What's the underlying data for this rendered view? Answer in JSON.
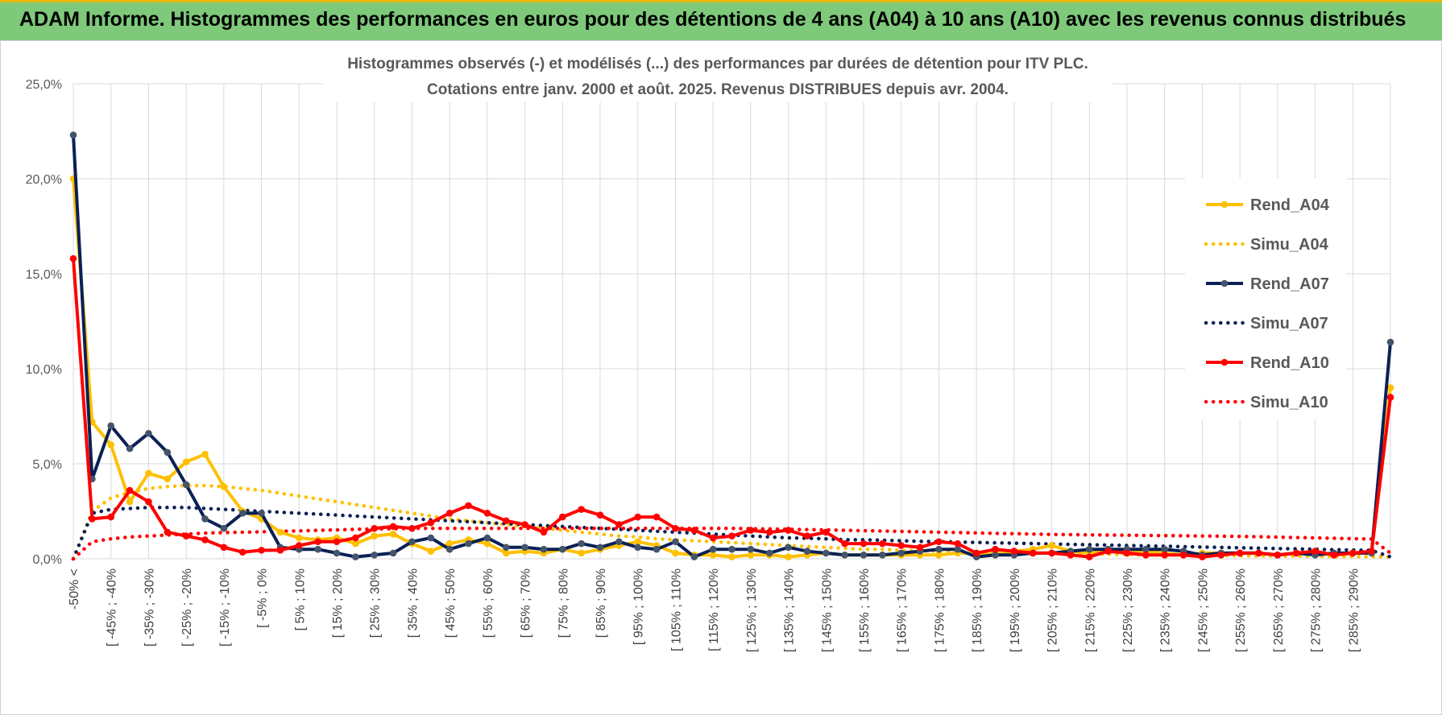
{
  "header": {
    "title": "ADAM Informe. Histogrammes des performances en euros pour des détentions de 4 ans (A04) à 10 ans (A10) avec les revenus connus distribués"
  },
  "colors": {
    "header_bg": "#7ec97a",
    "a04": "#FFC000",
    "a07": "#0B2055",
    "a10": "#FF0000",
    "grid": "#D9D9D9"
  },
  "chart_data": {
    "type": "line",
    "title": "Histogrammes observés (-) et modélisés (...) des performances par durées de détention pour ITV PLC.",
    "subtitle": "Cotations entre janv. 2000 et août. 2025. Revenus DISTRIBUES depuis avr. 2004.",
    "xlabel": "",
    "ylabel": "",
    "ylim": [
      0,
      25
    ],
    "yticks": [
      "0,0%",
      "5,0%",
      "10,0%",
      "15,0%",
      "20,0%",
      "25,0%"
    ],
    "grid": true,
    "legend_position": "right",
    "x_tick_labels": [
      "-50% <",
      "[ -45% ; -40%",
      "[ -35% ; -30%",
      "[ -25% ; -20%",
      "[ -15% ; -10%",
      "[ -5% ; 0%",
      "[ 5% ; 10%",
      "[ 15% ; 20%",
      "[ 25% ; 30%",
      "[ 35% ; 40%",
      "[ 45% ; 50%",
      "[ 55% ; 60%",
      "[ 65% ; 70%",
      "[ 75% ; 80%",
      "[ 85% ; 90%",
      "[ 95% ; 100%",
      "[ 105% ; 110%",
      "[ 115% ; 120%",
      "[ 125% ; 130%",
      "[ 135% ; 140%",
      "[ 145% ; 150%",
      "[ 155% ; 160%",
      "[ 165% ; 170%",
      "[ 175% ; 180%",
      "[ 185% ; 190%",
      "[ 195% ; 200%",
      "[ 205% ; 210%",
      "[ 215% ; 220%",
      "[ 225% ; 230%",
      "[ 235% ; 240%",
      "[ 245% ; 250%",
      "[ 255% ; 260%",
      "[ 265% ; 270%",
      "[ 275% ; 280%",
      "[ 285% ; 290%"
    ],
    "series": [
      {
        "name": "Rend_A04",
        "style": "solid",
        "color": "#FFC000",
        "values": [
          20.0,
          7.2,
          6.0,
          3.0,
          4.5,
          4.2,
          5.1,
          5.5,
          3.8,
          2.5,
          2.1,
          1.4,
          1.1,
          1.0,
          1.1,
          0.8,
          1.2,
          1.3,
          0.8,
          0.4,
          0.8,
          1.0,
          0.8,
          0.3,
          0.4,
          0.3,
          0.5,
          0.3,
          0.5,
          0.7,
          0.9,
          0.7,
          0.3,
          0.2,
          0.2,
          0.1,
          0.2,
          0.2,
          0.1,
          0.2,
          0.3,
          0.2,
          0.2,
          0.2,
          0.2,
          0.2,
          0.2,
          0.3,
          0.3,
          0.2,
          0.4,
          0.5,
          0.7,
          0.4,
          0.3,
          0.4,
          0.3,
          0.4,
          0.3,
          0.2,
          0.3,
          0.3,
          0.3,
          0.3,
          0.2,
          0.3,
          0.3,
          0.2,
          0.3,
          0.3,
          9.0
        ]
      },
      {
        "name": "Simu_A04",
        "style": "dotted",
        "color": "#FFC000",
        "values": [
          0.0,
          2.5,
          3.2,
          3.5,
          3.7,
          3.8,
          3.85,
          3.85,
          3.8,
          3.7,
          3.6,
          3.45,
          3.3,
          3.15,
          3.0,
          2.85,
          2.7,
          2.55,
          2.4,
          2.25,
          2.1,
          2.0,
          1.9,
          1.8,
          1.7,
          1.6,
          1.5,
          1.4,
          1.3,
          1.2,
          1.15,
          1.05,
          1.0,
          0.95,
          0.9,
          0.85,
          0.8,
          0.75,
          0.7,
          0.65,
          0.6,
          0.55,
          0.5,
          0.5,
          0.45,
          0.42,
          0.4,
          0.38,
          0.35,
          0.33,
          0.3,
          0.3,
          0.28,
          0.26,
          0.25,
          0.24,
          0.22,
          0.2,
          0.2,
          0.19,
          0.18,
          0.17,
          0.16,
          0.15,
          0.15,
          0.14,
          0.13,
          0.12,
          0.12,
          0.11,
          0.1
        ]
      },
      {
        "name": "Rend_A07",
        "style": "solid",
        "color": "#0B2055",
        "values": [
          22.3,
          4.2,
          7.0,
          5.8,
          6.6,
          5.6,
          3.9,
          2.1,
          1.6,
          2.4,
          2.4,
          0.6,
          0.5,
          0.5,
          0.3,
          0.1,
          0.2,
          0.3,
          0.9,
          1.1,
          0.5,
          0.8,
          1.1,
          0.6,
          0.6,
          0.5,
          0.5,
          0.8,
          0.6,
          0.9,
          0.6,
          0.5,
          0.9,
          0.1,
          0.5,
          0.5,
          0.5,
          0.3,
          0.6,
          0.4,
          0.3,
          0.2,
          0.2,
          0.2,
          0.3,
          0.4,
          0.5,
          0.5,
          0.1,
          0.2,
          0.2,
          0.3,
          0.3,
          0.4,
          0.5,
          0.5,
          0.5,
          0.5,
          0.5,
          0.4,
          0.2,
          0.3,
          0.3,
          0.3,
          0.2,
          0.3,
          0.2,
          0.3,
          0.3,
          0.3,
          11.4
        ]
      },
      {
        "name": "Simu_A07",
        "style": "dotted",
        "color": "#0B2055",
        "values": [
          0.0,
          2.4,
          2.6,
          2.65,
          2.7,
          2.7,
          2.7,
          2.65,
          2.6,
          2.55,
          2.5,
          2.45,
          2.4,
          2.35,
          2.3,
          2.25,
          2.2,
          2.15,
          2.1,
          2.05,
          2.0,
          1.95,
          1.9,
          1.85,
          1.8,
          1.75,
          1.7,
          1.65,
          1.6,
          1.55,
          1.5,
          1.45,
          1.4,
          1.35,
          1.3,
          1.25,
          1.2,
          1.15,
          1.1,
          1.08,
          1.05,
          1.0,
          1.0,
          0.98,
          0.95,
          0.92,
          0.9,
          0.88,
          0.86,
          0.84,
          0.82,
          0.8,
          0.78,
          0.76,
          0.74,
          0.72,
          0.7,
          0.68,
          0.66,
          0.64,
          0.62,
          0.6,
          0.58,
          0.56,
          0.54,
          0.52,
          0.5,
          0.48,
          0.46,
          0.44,
          0.1
        ]
      },
      {
        "name": "Rend_A10",
        "style": "solid",
        "color": "#FF0000",
        "values": [
          15.8,
          2.1,
          2.2,
          3.6,
          3.0,
          1.4,
          1.2,
          1.0,
          0.6,
          0.35,
          0.45,
          0.45,
          0.7,
          0.9,
          0.9,
          1.1,
          1.6,
          1.7,
          1.6,
          1.9,
          2.4,
          2.8,
          2.4,
          2.0,
          1.8,
          1.4,
          2.2,
          2.6,
          2.3,
          1.8,
          2.2,
          2.2,
          1.6,
          1.5,
          1.1,
          1.2,
          1.5,
          1.4,
          1.5,
          1.2,
          1.4,
          0.8,
          0.8,
          0.8,
          0.7,
          0.6,
          0.9,
          0.8,
          0.3,
          0.5,
          0.4,
          0.3,
          0.3,
          0.2,
          0.1,
          0.4,
          0.3,
          0.2,
          0.2,
          0.2,
          0.1,
          0.2,
          0.3,
          0.3,
          0.2,
          0.3,
          0.4,
          0.2,
          0.3,
          0.4,
          8.5
        ]
      },
      {
        "name": "Simu_A10",
        "style": "dotted",
        "color": "#FF0000",
        "values": [
          0.0,
          0.9,
          1.05,
          1.15,
          1.2,
          1.25,
          1.3,
          1.35,
          1.38,
          1.4,
          1.42,
          1.45,
          1.47,
          1.5,
          1.52,
          1.55,
          1.57,
          1.58,
          1.6,
          1.6,
          1.6,
          1.6,
          1.6,
          1.6,
          1.6,
          1.6,
          1.6,
          1.6,
          1.6,
          1.6,
          1.6,
          1.6,
          1.6,
          1.6,
          1.6,
          1.6,
          1.58,
          1.57,
          1.55,
          1.54,
          1.52,
          1.5,
          1.48,
          1.46,
          1.44,
          1.42,
          1.4,
          1.38,
          1.36,
          1.34,
          1.32,
          1.3,
          1.28,
          1.27,
          1.26,
          1.25,
          1.24,
          1.23,
          1.22,
          1.21,
          1.2,
          1.19,
          1.18,
          1.16,
          1.14,
          1.12,
          1.1,
          1.08,
          1.06,
          1.04,
          0.3
        ]
      }
    ]
  }
}
